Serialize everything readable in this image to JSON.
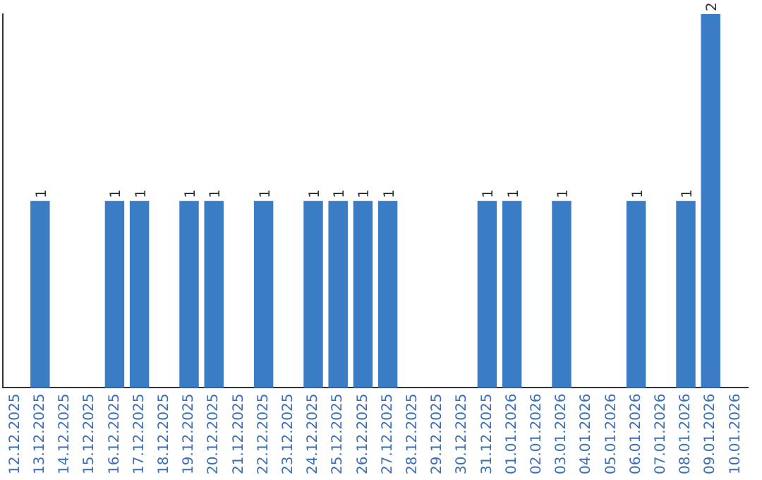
{
  "chart_data": {
    "type": "bar",
    "categories": [
      "12.12.2025",
      "13.12.2025",
      "14.12.2025",
      "15.12.2025",
      "16.12.2025",
      "17.12.2025",
      "18.12.2025",
      "19.12.2025",
      "20.12.2025",
      "21.12.2025",
      "22.12.2025",
      "23.12.2025",
      "24.12.2025",
      "25.12.2025",
      "26.12.2025",
      "27.12.2025",
      "28.12.2025",
      "29.12.2025",
      "30.12.2025",
      "31.12.2025",
      "01.01.2026",
      "02.01.2026",
      "03.01.2026",
      "04.01.2026",
      "05.01.2026",
      "06.01.2026",
      "07.01.2026",
      "08.01.2026",
      "09.01.2026",
      "10.01.2026"
    ],
    "values": [
      0,
      1,
      0,
      0,
      1,
      1,
      0,
      1,
      1,
      0,
      1,
      0,
      1,
      1,
      1,
      1,
      0,
      0,
      0,
      1,
      1,
      0,
      1,
      0,
      0,
      1,
      0,
      1,
      2,
      0
    ],
    "value_labels": [
      null,
      "1",
      null,
      null,
      "1",
      "1",
      null,
      "1",
      "1",
      null,
      "1",
      null,
      "1",
      "1",
      "1",
      "1",
      null,
      null,
      null,
      "1",
      "1",
      null,
      "1",
      null,
      null,
      "1",
      null,
      "1",
      "2",
      null
    ],
    "color": "#3b7dc4",
    "tick_labels": "x",
    "grid": false,
    "legend": false
  }
}
